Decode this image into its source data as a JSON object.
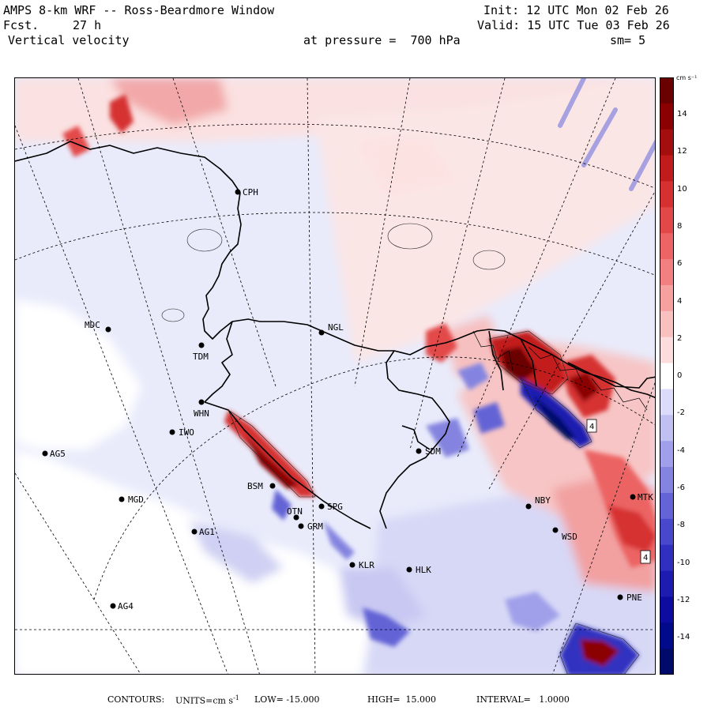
{
  "header": {
    "title_left": "AMPS 8-km WRF -- Ross-Beardmore Window",
    "fcst_label": "Fcst.",
    "fcst_value": "27 h",
    "field_name": "Vertical velocity",
    "init": "Init: 12 UTC Mon 02 Feb 26",
    "valid": "Valid: 15 UTC Tue 03 Feb 26",
    "pressure": "at pressure =  700 hPa",
    "smoothing": "sm= 5"
  },
  "colorbar": {
    "units": "cm s⁻¹",
    "ticks": [
      "14",
      "12",
      "10",
      "8",
      "6",
      "4",
      "2",
      "0",
      "-2",
      "-4",
      "-6",
      "-8",
      "-10",
      "-12",
      "-14"
    ],
    "colors": [
      "#6a0000",
      "#8b0000",
      "#a50e0e",
      "#c21b1b",
      "#d63030",
      "#e34848",
      "#ec6464",
      "#f28080",
      "#f6a0a0",
      "#f9c0c0",
      "#fcdcdc",
      "#ffffff",
      "#dcdcfa",
      "#c0c0f2",
      "#a0a0ea",
      "#8484e0",
      "#6464d6",
      "#4848cc",
      "#3030c0",
      "#1c1cb0",
      "#0c0ca0",
      "#000a8a",
      "#000a6a"
    ]
  },
  "stations": [
    {
      "name": "CPH",
      "label": "CPH"
    },
    {
      "name": "MDC",
      "label": "MDC"
    },
    {
      "name": "TDM",
      "label": "TDM"
    },
    {
      "name": "NGL",
      "label": "NGL"
    },
    {
      "name": "WHN",
      "label": "WHN"
    },
    {
      "name": "IWO",
      "label": "IWO"
    },
    {
      "name": "AG5",
      "label": "AG5"
    },
    {
      "name": "SDM",
      "label": "SDM"
    },
    {
      "name": "BSM",
      "label": "BSM"
    },
    {
      "name": "MGD",
      "label": "MGD"
    },
    {
      "name": "SPG",
      "label": "SPG"
    },
    {
      "name": "OTN",
      "label": "OTN"
    },
    {
      "name": "GRM",
      "label": "GRM"
    },
    {
      "name": "NBY",
      "label": "NBY"
    },
    {
      "name": "MTK",
      "label": "MTK"
    },
    {
      "name": "AG1",
      "label": "AG1"
    },
    {
      "name": "WSD",
      "label": "WSD"
    },
    {
      "name": "KLR",
      "label": "KLR"
    },
    {
      "name": "HLK",
      "label": "HLK"
    },
    {
      "name": "PNE",
      "label": "PNE"
    },
    {
      "name": "AG4",
      "label": "AG4"
    }
  ],
  "map_labels": {
    "box_a": "4",
    "box_b": "4"
  },
  "footer": {
    "contours_label": "CONTOURS:",
    "units_text": "UNITS=cm s",
    "units_exp": "-1",
    "low_text": "LOW= -15.000",
    "high_text": "HIGH=  15.000",
    "interval_text": "INTERVAL=   1.0000"
  }
}
